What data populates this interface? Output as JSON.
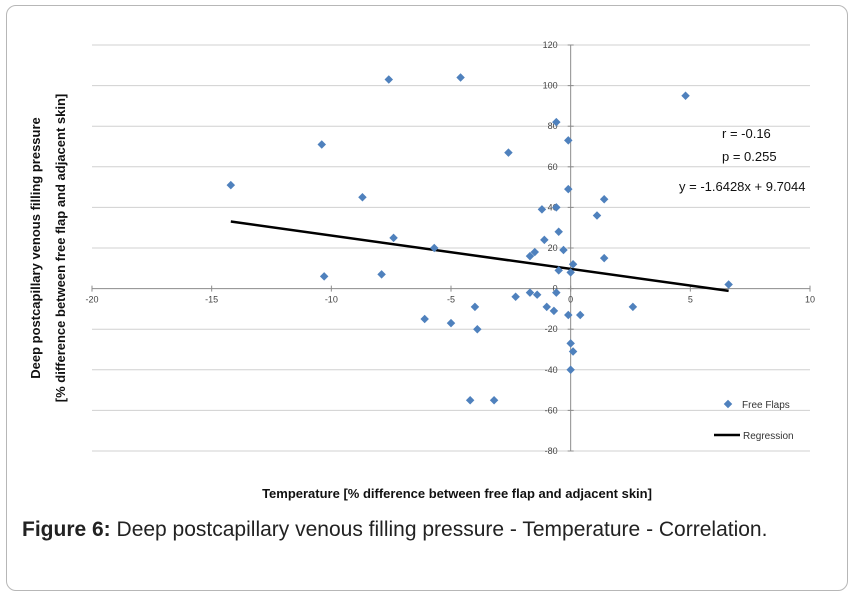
{
  "chart_data": {
    "type": "scatter",
    "xlabel": "Temperature [% difference between  free flap and adjacent skin]",
    "ylabel_lines": [
      "Deep postcapillary venous filling pressure",
      "[% difference between  free flap and adjacent skin]"
    ],
    "xlim": [
      -20,
      10
    ],
    "ylim": [
      -80,
      120
    ],
    "xticks": [
      -20,
      -15,
      -10,
      -5,
      0,
      5,
      10
    ],
    "yticks": [
      -80,
      -60,
      -40,
      -20,
      0,
      20,
      40,
      60,
      80,
      100,
      120
    ],
    "grid": "horizontal",
    "legend_position": "bottom-right",
    "annotations": [
      "r = -0.16",
      "p = 0.255",
      "y = -1.6428x + 9.7044"
    ],
    "series": [
      {
        "name": "Free Flaps",
        "color": "#4f81bd",
        "points": [
          [
            -7.6,
            103
          ],
          [
            -4.6,
            104
          ],
          [
            -10.4,
            71
          ],
          [
            4.8,
            95
          ],
          [
            -0.6,
            82
          ],
          [
            -2.6,
            67
          ],
          [
            -0.1,
            73
          ],
          [
            -14.2,
            51
          ],
          [
            -8.7,
            45
          ],
          [
            -1.2,
            39
          ],
          [
            -0.6,
            40
          ],
          [
            1.4,
            44
          ],
          [
            1.1,
            36
          ],
          [
            -0.1,
            49
          ],
          [
            -0.5,
            28
          ],
          [
            -7.4,
            25
          ],
          [
            -1.1,
            24
          ],
          [
            -5.7,
            20
          ],
          [
            -1.5,
            18
          ],
          [
            -1.7,
            16
          ],
          [
            -0.3,
            19
          ],
          [
            1.4,
            15
          ],
          [
            0.1,
            12
          ],
          [
            -10.3,
            6
          ],
          [
            -7.9,
            7
          ],
          [
            0,
            8
          ],
          [
            -0.5,
            9
          ],
          [
            6.6,
            2
          ],
          [
            -2.3,
            -4
          ],
          [
            -1.4,
            -3
          ],
          [
            -1.7,
            -2
          ],
          [
            -0.6,
            -2
          ],
          [
            -1.0,
            -9
          ],
          [
            -0.7,
            -11
          ],
          [
            -0.1,
            -13
          ],
          [
            0.4,
            -13
          ],
          [
            -4.0,
            -9
          ],
          [
            2.6,
            -9
          ],
          [
            -6.1,
            -15
          ],
          [
            -5.0,
            -17
          ],
          [
            -3.9,
            -20
          ],
          [
            0.0,
            -27
          ],
          [
            0.1,
            -31
          ],
          [
            0.0,
            -40
          ],
          [
            -4.2,
            -55
          ],
          [
            -3.2,
            -55
          ]
        ]
      },
      {
        "name": "Regression",
        "color": "#000000",
        "line": {
          "x_start": -14.2,
          "x_end": 6.6,
          "slope": -1.6428,
          "intercept": 9.7044
        }
      }
    ]
  },
  "caption": {
    "label": "Figure 6:",
    "text": " Deep postcapillary venous filling pressure - Temperature - Correlation."
  }
}
